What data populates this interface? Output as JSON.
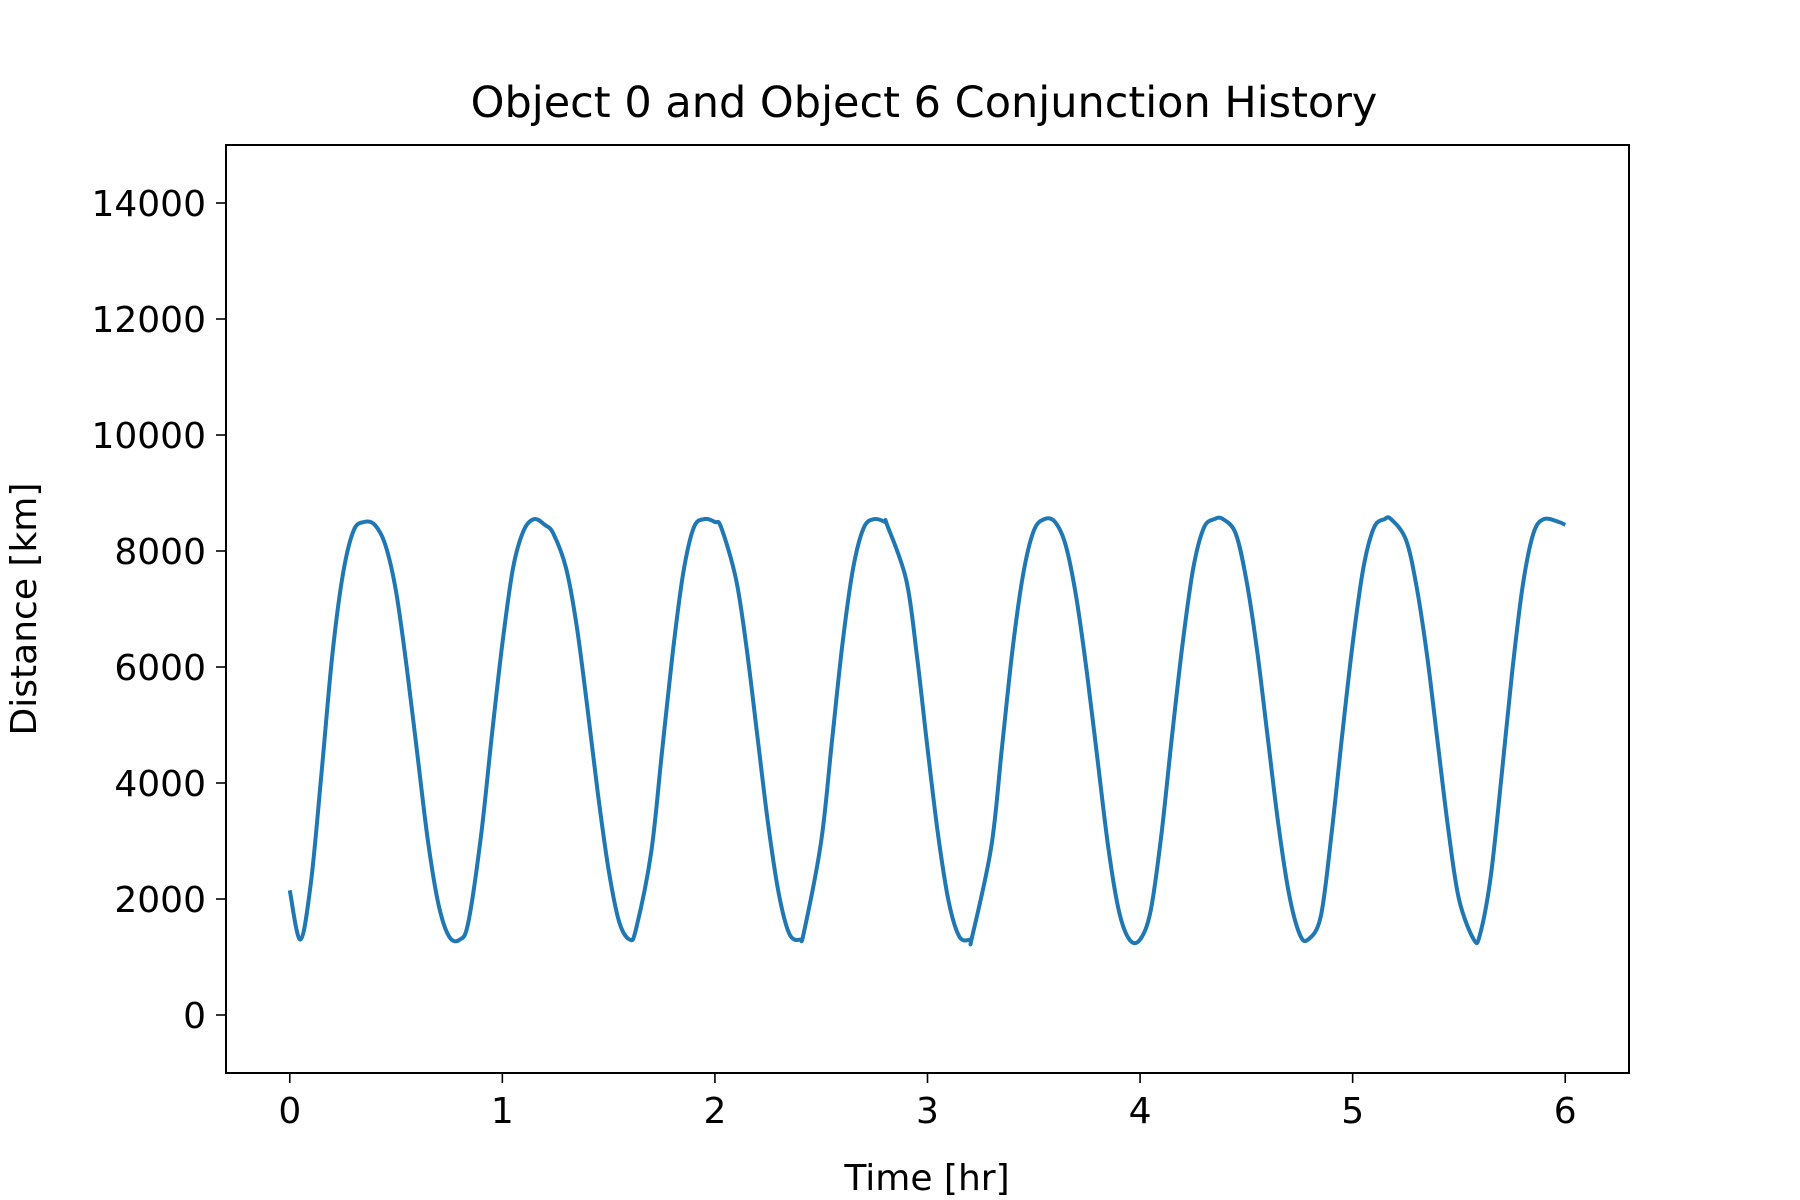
{
  "chart_data": {
    "type": "line",
    "title": "Object 0 and Object 6 Conjunction History",
    "xlabel": "Time [hr]",
    "ylabel": "Distance [km]",
    "xlim": [
      -0.3,
      6.3
    ],
    "ylim": [
      -1000,
      15000
    ],
    "xticks": [
      0,
      1,
      2,
      3,
      4,
      5,
      6
    ],
    "xtick_labels": [
      "0",
      "1",
      "2",
      "3",
      "4",
      "5",
      "6"
    ],
    "yticks": [
      0,
      2000,
      4000,
      6000,
      8000,
      10000,
      12000,
      14000
    ],
    "ytick_labels": [
      "0",
      "2000",
      "4000",
      "6000",
      "8000",
      "10000",
      "12000",
      "14000"
    ],
    "grid": false,
    "series": [
      {
        "color": "#1f77b4",
        "x": [
          0,
          0.05,
          0.1,
          0.15,
          0.2,
          0.25,
          0.3,
          0.35,
          0.4,
          0.45,
          0.5,
          0.55,
          0.6,
          0.65,
          0.7,
          0.75,
          0.8,
          0.84,
          0.9,
          0.95,
          1.0,
          1.05,
          1.1,
          1.15,
          1.2,
          1.24,
          1.3,
          1.35,
          1.4,
          1.45,
          1.5,
          1.55,
          1.6,
          1.63,
          1.7,
          1.75,
          1.8,
          1.85,
          1.9,
          1.95,
          2.0,
          2.03,
          2.1,
          2.15,
          2.2,
          2.25,
          2.3,
          2.35,
          2.4,
          2.42,
          2.5,
          2.55,
          2.6,
          2.65,
          2.7,
          2.75,
          2.8,
          2.81,
          2.9,
          2.95,
          3.0,
          3.05,
          3.1,
          3.15,
          3.2,
          3.21,
          3.3,
          3.35,
          3.4,
          3.45,
          3.5,
          3.55,
          3.6,
          3.65,
          3.7,
          3.75,
          3.8,
          3.85,
          3.9,
          3.95,
          4.0,
          4.05,
          4.1,
          4.15,
          4.2,
          4.25,
          4.3,
          4.35,
          4.39,
          4.45,
          4.5,
          4.55,
          4.6,
          4.65,
          4.7,
          4.75,
          4.79,
          4.85,
          4.9,
          4.95,
          5.0,
          5.05,
          5.1,
          5.15,
          5.18,
          5.25,
          5.3,
          5.35,
          5.4,
          5.45,
          5.5,
          5.57,
          5.6,
          5.65,
          5.7,
          5.75,
          5.8,
          5.85,
          5.9,
          5.97,
          6.0
        ],
        "values": [
          2150,
          1300,
          2300,
          4200,
          6200,
          7600,
          8350,
          8500,
          8450,
          8100,
          7300,
          6000,
          4500,
          3000,
          1900,
          1350,
          1300,
          1600,
          3100,
          4800,
          6400,
          7700,
          8350,
          8550,
          8450,
          8300,
          7700,
          6700,
          5300,
          3800,
          2500,
          1600,
          1300,
          1500,
          2800,
          4500,
          6200,
          7600,
          8400,
          8550,
          8500,
          8400,
          7500,
          6300,
          4800,
          3300,
          2100,
          1400,
          1300,
          1450,
          3000,
          4700,
          6400,
          7700,
          8400,
          8550,
          8500,
          8450,
          7500,
          6200,
          4600,
          3100,
          1950,
          1350,
          1300,
          1350,
          2900,
          4600,
          6300,
          7600,
          8350,
          8550,
          8500,
          8100,
          7200,
          5900,
          4400,
          2900,
          1800,
          1300,
          1300,
          1800,
          3100,
          4800,
          6400,
          7700,
          8400,
          8550,
          8550,
          8300,
          7500,
          6300,
          4800,
          3300,
          2100,
          1400,
          1300,
          1700,
          3100,
          4800,
          6400,
          7700,
          8400,
          8550,
          8550,
          8200,
          7400,
          6200,
          4700,
          3200,
          2000,
          1300,
          1400,
          2400,
          4100,
          5900,
          7400,
          8300,
          8550,
          8500,
          8450
        ]
      }
    ]
  }
}
